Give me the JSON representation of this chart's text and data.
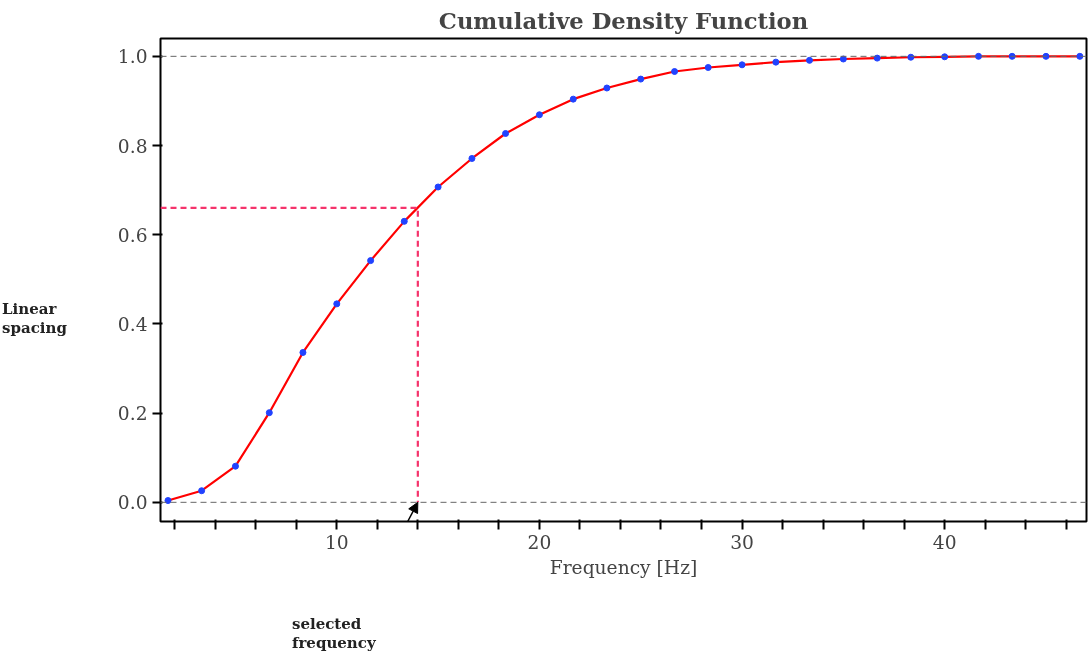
{
  "chart_data": {
    "type": "line",
    "title": "Cumulative Density Function",
    "xlabel": "Frequency [Hz]",
    "xlim": [
      1.3,
      47
    ],
    "ylim": [
      -0.043,
      1.04
    ],
    "xticks": [
      {
        "value": 2,
        "label": null
      },
      {
        "value": 4,
        "label": null
      },
      {
        "value": 6,
        "label": null
      },
      {
        "value": 8,
        "label": null
      },
      10,
      {
        "value": 12,
        "label": null
      },
      {
        "value": 14,
        "label": null
      },
      {
        "value": 16,
        "label": null
      },
      {
        "value": 18,
        "label": null
      },
      20,
      {
        "value": 22,
        "label": null
      },
      {
        "value": 24,
        "label": null
      },
      {
        "value": 26,
        "label": null
      },
      {
        "value": 28,
        "label": null
      },
      30,
      {
        "value": 32,
        "label": null
      },
      {
        "value": 34,
        "label": null
      },
      {
        "value": 36,
        "label": null
      },
      {
        "value": 38,
        "label": null
      },
      40,
      {
        "value": 42,
        "label": null
      },
      {
        "value": 44,
        "label": null
      },
      {
        "value": 46,
        "label": null
      }
    ],
    "yticks": [
      {
        "value": 0,
        "label": "0.0"
      },
      0.2,
      0.4,
      0.6,
      0.8,
      {
        "value": 1,
        "label": "1.0"
      }
    ],
    "grid": false,
    "series": [
      {
        "color": "#ff0000",
        "marker": "none",
        "line_style": "solid",
        "x": [
          1.67,
          3.33,
          5,
          6.67,
          8.33,
          10,
          11.67,
          13.33,
          15,
          16.67,
          18.33,
          20,
          21.67,
          23.33,
          25,
          26.67,
          28.33,
          30,
          31.67,
          33.33,
          35,
          36.67,
          38.33,
          40,
          41.67,
          43.33,
          45,
          46.67
        ],
        "values": [
          0.004,
          0.026,
          0.081,
          0.201,
          0.336,
          0.445,
          0.542,
          0.63,
          0.707,
          0.771,
          0.827,
          0.869,
          0.904,
          0.929,
          0.949,
          0.966,
          0.975,
          0.981,
          0.987,
          0.991,
          0.994,
          0.996,
          0.998,
          0.999,
          1,
          1,
          1,
          1
        ]
      },
      {
        "type": "scatter",
        "color": "#2142ff",
        "marker": "circle",
        "x": [
          1.67,
          3.33,
          5,
          6.67,
          8.33,
          10,
          11.67,
          13.33,
          15,
          16.67,
          18.33,
          20,
          21.67,
          23.33,
          25,
          26.67,
          28.33,
          30,
          31.67,
          33.33,
          35,
          36.67,
          38.33,
          40,
          41.67,
          43.33,
          45,
          46.67
        ],
        "values": [
          0.004,
          0.026,
          0.081,
          0.201,
          0.336,
          0.445,
          0.542,
          0.63,
          0.707,
          0.771,
          0.827,
          0.869,
          0.904,
          0.929,
          0.949,
          0.966,
          0.975,
          0.981,
          0.987,
          0.991,
          0.994,
          0.996,
          0.998,
          0.999,
          1,
          1,
          1,
          1
        ]
      },
      {
        "type": "line",
        "color": "#f5336b",
        "marker": "none",
        "line_style": "dashed",
        "x": [
          1.3,
          14,
          14
        ],
        "values": [
          0.66,
          0.66,
          0
        ]
      }
    ],
    "ref_lines": [
      {
        "axis": "y",
        "value": 0,
        "color": "#666666",
        "line_style": "dashed"
      },
      {
        "axis": "y",
        "value": 1,
        "color": "#666666",
        "line_style": "dashed"
      }
    ],
    "annotations": [
      "selected frequency",
      "Linear spacing"
    ]
  }
}
